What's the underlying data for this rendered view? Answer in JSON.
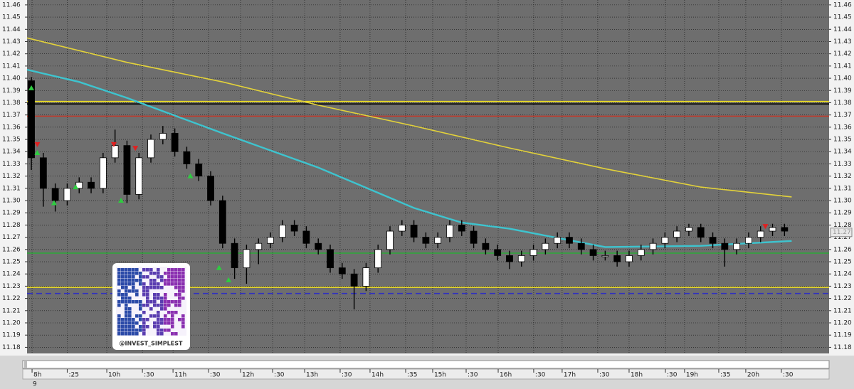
{
  "chart_data": {
    "type": "candlestick",
    "xlim": [
      -0.36,
      66.73
    ],
    "ylim": [
      11.175,
      11.464
    ],
    "yticks": [
      {
        "value": 11.18,
        "label": "11.18"
      },
      {
        "value": 11.19,
        "label": "11.19"
      },
      {
        "value": 11.2,
        "label": "11.20"
      },
      {
        "value": 11.21,
        "label": "11.21"
      },
      {
        "value": 11.22,
        "label": "11.22"
      },
      {
        "value": 11.23,
        "label": "11.23"
      },
      {
        "value": 11.24,
        "label": "11.24"
      },
      {
        "value": 11.25,
        "label": "11.25"
      },
      {
        "value": 11.26,
        "label": "11.26"
      },
      {
        "value": 11.27,
        "label": "11.27"
      },
      {
        "value": 11.28,
        "label": "11.28"
      },
      {
        "value": 11.29,
        "label": "11.29"
      },
      {
        "value": 11.3,
        "label": "11.30"
      },
      {
        "value": 11.31,
        "label": "11.31"
      },
      {
        "value": 11.32,
        "label": "11.32"
      },
      {
        "value": 11.33,
        "label": "11.33"
      },
      {
        "value": 11.34,
        "label": "11.34"
      },
      {
        "value": 11.35,
        "label": "11.35"
      },
      {
        "value": 11.36,
        "label": "11.36"
      },
      {
        "value": 11.37,
        "label": "11.37"
      },
      {
        "value": 11.38,
        "label": "11.38"
      },
      {
        "value": 11.39,
        "label": "11.39"
      },
      {
        "value": 11.4,
        "label": "11.40"
      },
      {
        "value": 11.41,
        "label": "11.41"
      },
      {
        "value": 11.42,
        "label": "11.42"
      },
      {
        "value": 11.43,
        "label": "11.43"
      },
      {
        "value": 11.44,
        "label": "11.44"
      },
      {
        "value": 11.45,
        "label": "11.45"
      },
      {
        "value": 11.46,
        "label": "11.46"
      }
    ],
    "xticks": [
      {
        "value": 0.06,
        "label": "8h"
      },
      {
        "value": 3.0,
        "label": ":25"
      },
      {
        "value": 6.31,
        "label": "10h"
      },
      {
        "value": 9.29,
        "label": ":30"
      },
      {
        "value": 11.85,
        "label": "11h"
      },
      {
        "value": 14.82,
        "label": ":30"
      },
      {
        "value": 17.5,
        "label": "12h"
      },
      {
        "value": 20.18,
        "label": ":30"
      },
      {
        "value": 22.86,
        "label": "13h"
      },
      {
        "value": 25.83,
        "label": ":30"
      },
      {
        "value": 28.33,
        "label": "14h"
      },
      {
        "value": 31.31,
        "label": ":35"
      },
      {
        "value": 33.57,
        "label": "15h"
      },
      {
        "value": 36.37,
        "label": ":30"
      },
      {
        "value": 39.05,
        "label": "16h"
      },
      {
        "value": 42.02,
        "label": ":30"
      },
      {
        "value": 44.4,
        "label": "17h"
      },
      {
        "value": 47.38,
        "label": ":30"
      },
      {
        "value": 50,
        "label": "18h"
      },
      {
        "value": 53.04,
        "label": ":30"
      },
      {
        "value": 54.64,
        "label": "19h"
      },
      {
        "value": 57.5,
        "label": ":35"
      },
      {
        "value": 59.76,
        "label": "20h"
      },
      {
        "value": 62.74,
        "label": ":30"
      }
    ],
    "grid": true,
    "up_color": "#ffffff",
    "down_color": "#000000",
    "open": [
      11.398,
      11.335,
      11.31,
      11.3,
      11.31,
      11.315,
      11.31,
      11.335,
      11.345,
      11.305,
      11.335,
      11.35,
      11.355,
      11.34,
      11.33,
      11.32,
      11.3,
      11.265,
      11.245,
      11.26,
      11.265,
      11.27,
      11.28,
      11.275,
      11.265,
      11.26,
      11.245,
      11.24,
      11.23,
      11.245,
      11.26,
      11.275,
      11.28,
      11.27,
      11.265,
      11.27,
      11.28,
      11.275,
      11.265,
      11.26,
      11.255,
      11.25,
      11.255,
      11.26,
      11.265,
      11.27,
      11.265,
      11.26,
      11.255,
      11.255,
      11.25,
      11.255,
      11.26,
      11.265,
      11.27,
      11.275,
      11.278,
      11.27,
      11.265,
      11.26,
      11.265,
      11.27,
      11.275,
      11.278
    ],
    "high": [
      11.401,
      11.339,
      11.314,
      11.314,
      11.319,
      11.319,
      11.339,
      11.358,
      11.349,
      11.339,
      11.354,
      11.361,
      11.359,
      11.344,
      11.334,
      11.324,
      11.304,
      11.269,
      11.264,
      11.269,
      11.274,
      11.284,
      11.284,
      11.279,
      11.269,
      11.264,
      11.249,
      11.244,
      11.249,
      11.264,
      11.279,
      11.284,
      11.284,
      11.274,
      11.274,
      11.284,
      11.284,
      11.279,
      11.269,
      11.264,
      11.259,
      11.259,
      11.264,
      11.269,
      11.274,
      11.274,
      11.269,
      11.264,
      11.259,
      11.259,
      11.259,
      11.264,
      11.269,
      11.274,
      11.279,
      11.281,
      11.281,
      11.274,
      11.269,
      11.269,
      11.274,
      11.279,
      11.281,
      11.281
    ],
    "low": [
      11.325,
      11.295,
      11.291,
      11.296,
      11.306,
      11.306,
      11.306,
      11.331,
      11.298,
      11.301,
      11.331,
      11.346,
      11.336,
      11.326,
      11.316,
      11.296,
      11.261,
      11.236,
      11.232,
      11.248,
      11.261,
      11.266,
      11.271,
      11.261,
      11.256,
      11.241,
      11.236,
      11.211,
      11.226,
      11.241,
      11.256,
      11.271,
      11.266,
      11.261,
      11.261,
      11.266,
      11.271,
      11.261,
      11.256,
      11.251,
      11.244,
      11.246,
      11.251,
      11.256,
      11.261,
      11.261,
      11.256,
      11.251,
      11.251,
      11.246,
      11.246,
      11.251,
      11.256,
      11.261,
      11.266,
      11.271,
      11.266,
      11.261,
      11.246,
      11.256,
      11.261,
      11.266,
      11.271,
      11.271
    ],
    "close": [
      11.335,
      11.31,
      11.3,
      11.31,
      11.315,
      11.31,
      11.335,
      11.345,
      11.305,
      11.335,
      11.35,
      11.355,
      11.34,
      11.33,
      11.32,
      11.3,
      11.265,
      11.245,
      11.26,
      11.265,
      11.27,
      11.28,
      11.275,
      11.265,
      11.26,
      11.245,
      11.24,
      11.23,
      11.245,
      11.26,
      11.275,
      11.28,
      11.27,
      11.265,
      11.27,
      11.28,
      11.275,
      11.265,
      11.26,
      11.255,
      11.25,
      11.255,
      11.26,
      11.265,
      11.27,
      11.265,
      11.26,
      11.255,
      11.255,
      11.25,
      11.255,
      11.26,
      11.265,
      11.27,
      11.275,
      11.278,
      11.27,
      11.265,
      11.26,
      11.265,
      11.27,
      11.275,
      11.278,
      11.275
    ],
    "lines": [
      {
        "color": "#e3d23a",
        "x": [
          -0.36,
          8,
          16,
          24,
          32,
          40,
          48,
          56,
          63.6
        ],
        "values": [
          11.433,
          11.413,
          11.397,
          11.378,
          11.361,
          11.343,
          11.326,
          11.311,
          11.303
        ]
      },
      {
        "color": "#3ec4cf",
        "x": [
          -0.36,
          4,
          8,
          16,
          24,
          32,
          36,
          40,
          48,
          56,
          63.6
        ],
        "values": [
          11.407,
          11.397,
          11.384,
          11.355,
          11.327,
          11.294,
          11.282,
          11.277,
          11.262,
          11.263,
          11.267
        ]
      }
    ],
    "hlines": [
      {
        "value": 11.381,
        "color": "#f0e020",
        "style": "solid"
      },
      {
        "value": 11.379,
        "color": "#000000",
        "style": "solid"
      },
      {
        "value": 11.369,
        "color": "#c0392b",
        "style": "solid"
      },
      {
        "value": 11.257,
        "color": "#2fa83a",
        "style": "solid"
      },
      {
        "value": 11.229,
        "color": "#f0e020",
        "style": "solid"
      },
      {
        "value": 11.224,
        "color": "#3030c0",
        "style": "dashed"
      }
    ],
    "signals": [
      {
        "x": 0,
        "value": 11.392,
        "dir": "up"
      },
      {
        "x": 0.5,
        "value": 11.346,
        "dir": "down"
      },
      {
        "x": 0.5,
        "value": 11.339,
        "dir": "up"
      },
      {
        "x": 1.9,
        "value": 11.298,
        "dir": "up"
      },
      {
        "x": 3.7,
        "value": 11.311,
        "dir": "up"
      },
      {
        "x": 6.9,
        "value": 11.346,
        "dir": "down"
      },
      {
        "x": 7.5,
        "value": 11.3,
        "dir": "up"
      },
      {
        "x": 8.7,
        "value": 11.343,
        "dir": "down"
      },
      {
        "x": 13.3,
        "value": 11.32,
        "dir": "up"
      },
      {
        "x": 15.7,
        "value": 11.245,
        "dir": "up"
      },
      {
        "x": 16.5,
        "value": 11.235,
        "dir": "up"
      },
      {
        "x": 61.4,
        "value": 11.279,
        "dir": "down"
      }
    ],
    "last_price": {
      "value": 11.274,
      "label": "11.27"
    },
    "watermark": "@INVEST_SIMPLEST",
    "panel_label": "9"
  }
}
